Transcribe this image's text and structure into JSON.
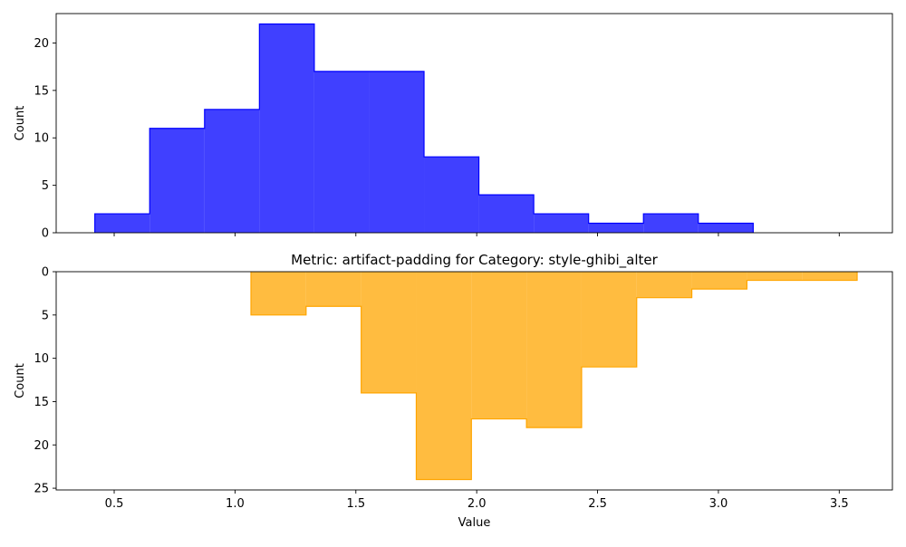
{
  "chart_data": [
    {
      "type": "bar",
      "histogram": true,
      "bin_edges": [
        0.42,
        0.647,
        0.874,
        1.101,
        1.328,
        1.555,
        1.782,
        2.009,
        2.236,
        2.463,
        2.69,
        2.917,
        3.144
      ],
      "counts": [
        2,
        11,
        13,
        22,
        17,
        17,
        8,
        4,
        2,
        1,
        2,
        1
      ],
      "color": "#0000ff",
      "alpha": 0.75,
      "title": "",
      "xlabel": "",
      "ylabel": "Count",
      "xlim": [
        0.26,
        3.72
      ],
      "ylim": [
        0,
        23.1
      ],
      "y_inverted": false,
      "xticks": [
        0.5,
        1.0,
        1.5,
        2.0,
        2.5,
        3.0,
        3.5
      ],
      "xtick_labels_shown": false,
      "yticks": [
        0,
        5,
        10,
        15,
        20
      ],
      "ytick_labels": [
        "0",
        "5",
        "10",
        "15",
        "20"
      ],
      "grid": false
    },
    {
      "type": "bar",
      "histogram": true,
      "bin_edges": [
        1.066,
        1.294,
        1.522,
        1.75,
        1.978,
        2.206,
        2.434,
        2.662,
        2.89,
        3.118,
        3.346,
        3.574
      ],
      "counts": [
        5,
        4,
        14,
        24,
        17,
        18,
        11,
        3,
        2,
        1,
        1
      ],
      "color": "#ffa500",
      "alpha": 0.75,
      "title": "Metric: artifact-padding for Category: style-ghibi_alter",
      "xlabel": "Value",
      "ylabel": "Count",
      "xlim": [
        0.26,
        3.72
      ],
      "ylim": [
        0,
        25.2
      ],
      "y_inverted": true,
      "xticks": [
        0.5,
        1.0,
        1.5,
        2.0,
        2.5,
        3.0,
        3.5
      ],
      "xtick_labels": [
        "0.5",
        "1.0",
        "1.5",
        "2.0",
        "2.5",
        "3.0",
        "3.5"
      ],
      "xtick_labels_shown": true,
      "yticks": [
        0,
        5,
        10,
        15,
        20,
        25
      ],
      "ytick_labels": [
        "0",
        "5",
        "10",
        "15",
        "20",
        "25"
      ],
      "grid": false
    }
  ]
}
